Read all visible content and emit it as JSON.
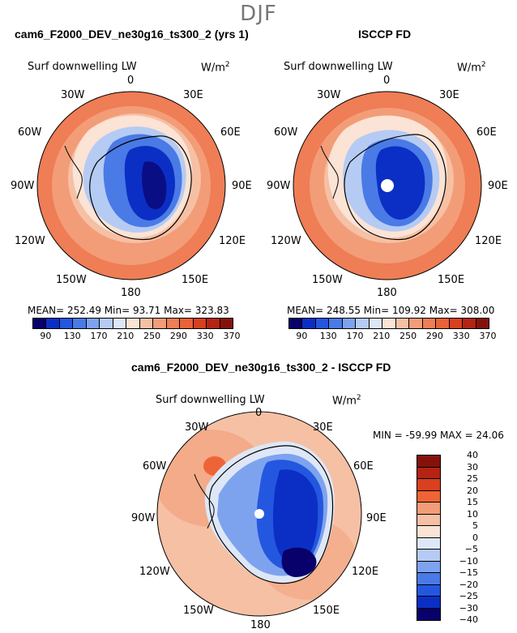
{
  "season": "DJF",
  "panels": {
    "model": {
      "title": "cam6_F2000_DEV_ne30g16_ts300_2 (yrs 1)",
      "variable": "Surf downwelling LW",
      "units": "W/m",
      "units_sup": "2",
      "stats": "MEAN= 252.49   Min=  93.71   Max= 323.83"
    },
    "obs": {
      "title": "ISCCP FD",
      "variable": "Surf downwelling LW",
      "units": "W/m",
      "units_sup": "2",
      "stats": "MEAN= 248.55   Min= 109.92   Max= 308.00"
    },
    "diff": {
      "title": "cam6_F2000_DEV_ne30g16_ts300_2 - ISCCP FD",
      "variable": "Surf downwelling LW",
      "units": "W/m",
      "units_sup": "2",
      "stats": "MIN = -59.99  MAX =  24.06"
    }
  },
  "lon_labels": {
    "top": "0",
    "ne": "30E",
    "ene": "60E",
    "e": "90E",
    "ese": "120E",
    "se": "150E",
    "bottom": "180",
    "sw": "150W",
    "wsw": "120W",
    "w": "90W",
    "wnw": "60W",
    "nw": "30W"
  },
  "abs_colorbar": {
    "colors": [
      "#08006b",
      "#0b2fc4",
      "#2457e0",
      "#4a7ae6",
      "#7ea3ee",
      "#b5cbf3",
      "#dde7f7",
      "#fbe3d5",
      "#f6c0a4",
      "#f29d78",
      "#ef7d55",
      "#e9623a",
      "#d8401f",
      "#b42313",
      "#85120a"
    ],
    "ticks": [
      "90",
      "130",
      "170",
      "210",
      "250",
      "290",
      "330",
      "370"
    ]
  },
  "diff_colorbar": {
    "colors": [
      "#85120a",
      "#b42313",
      "#d8401f",
      "#ef6436",
      "#f29d78",
      "#f6c0a4",
      "#fbe3d5",
      "#dde7f7",
      "#b5cbf3",
      "#7ea3ee",
      "#4a7ae6",
      "#2457e0",
      "#0b2fc4",
      "#08006b"
    ],
    "ticks": [
      "40",
      "30",
      "25",
      "20",
      "15",
      "10",
      "5",
      "0",
      "−5",
      "−10",
      "−15",
      "−20",
      "−25",
      "−30",
      "−40"
    ]
  }
}
